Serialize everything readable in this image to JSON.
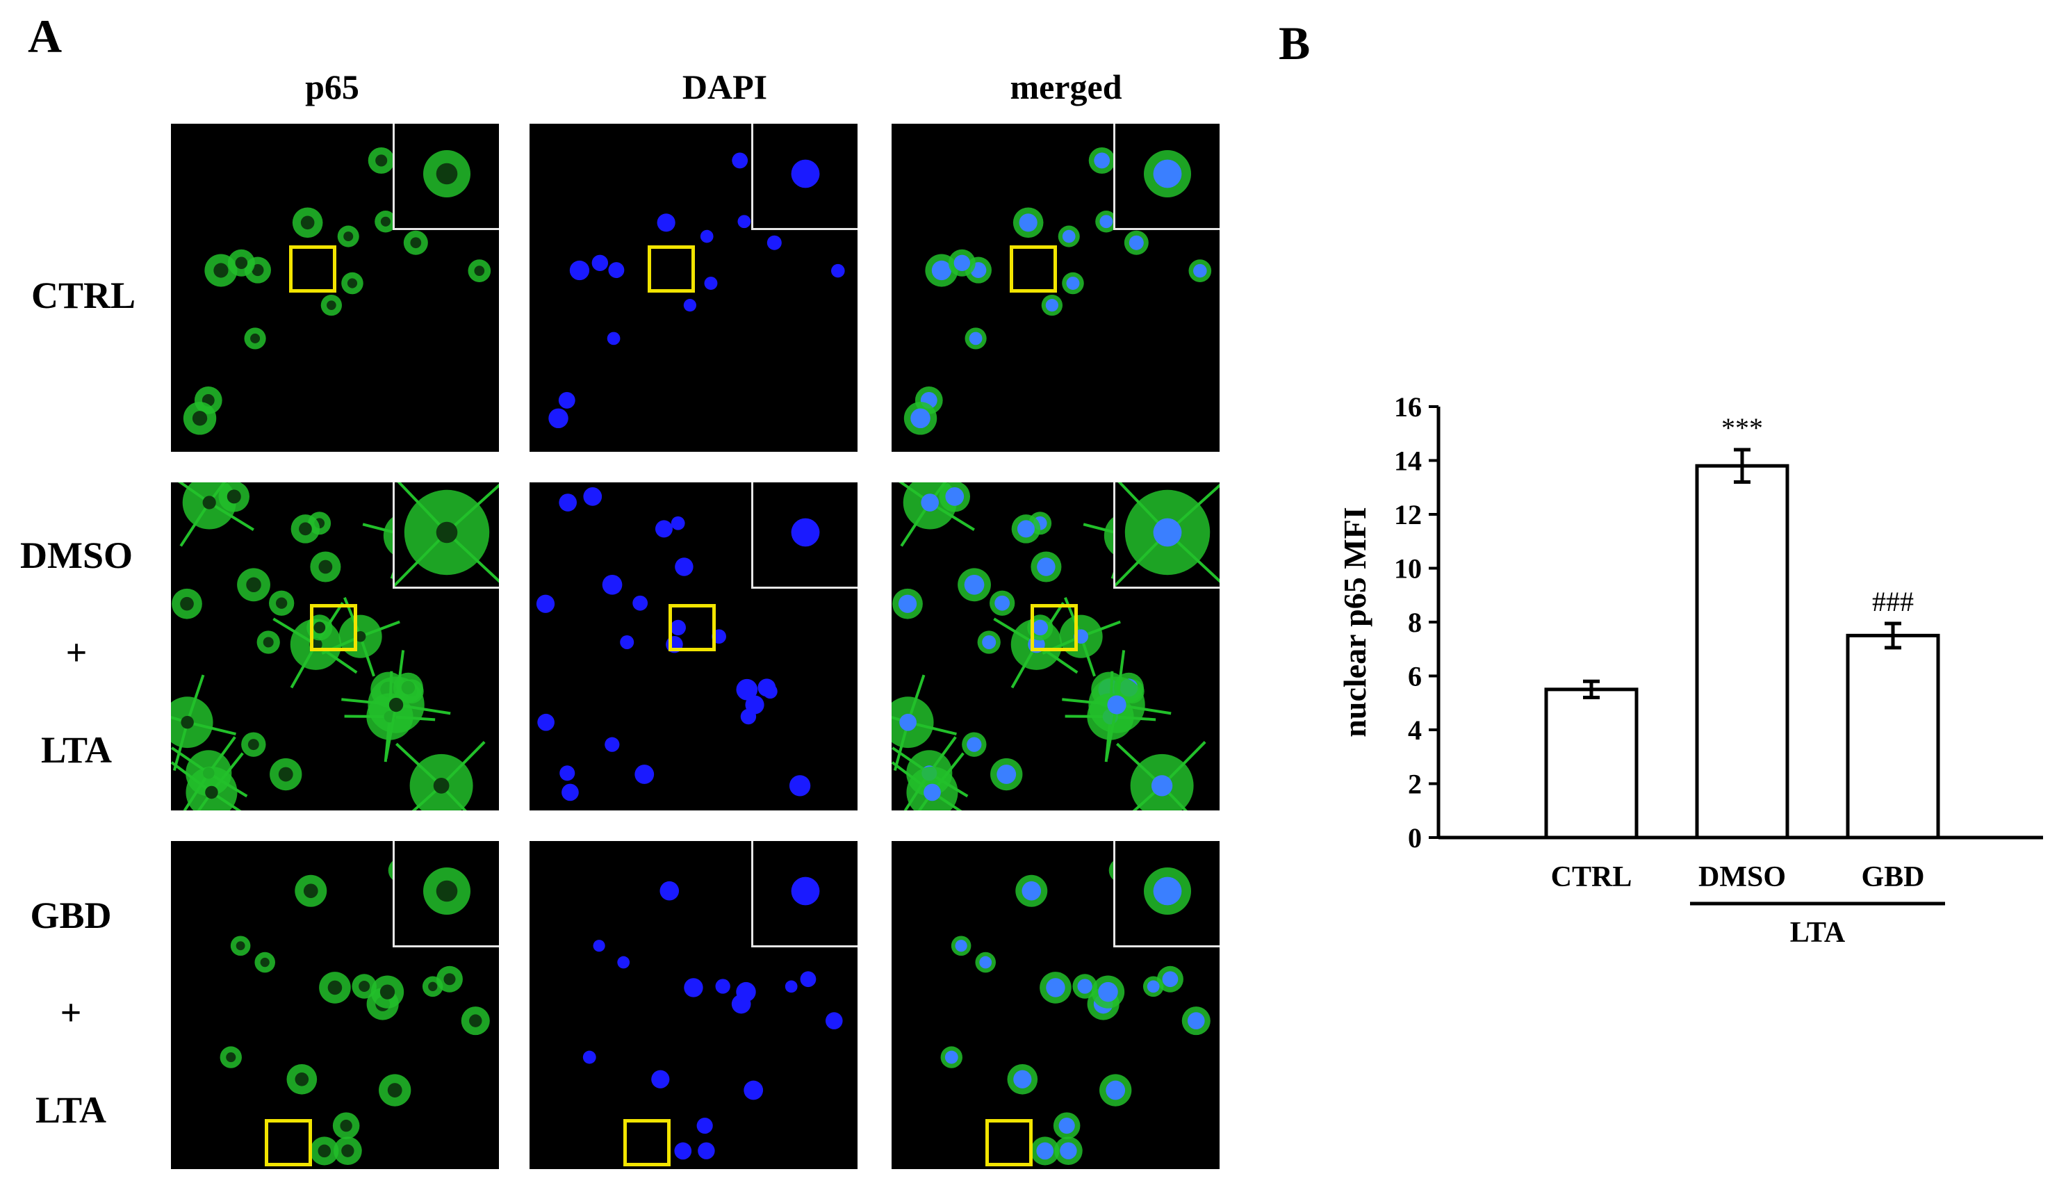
{
  "panel_a": {
    "letter": "A",
    "columns": [
      "p65",
      "DAPI",
      "merged"
    ],
    "rows": [
      {
        "lines": [
          "CTRL"
        ]
      },
      {
        "lines": [
          "DMSO",
          "+",
          "LTA"
        ]
      },
      {
        "lines": [
          "GBD",
          "+",
          "LTA"
        ]
      }
    ],
    "channel_colors": {
      "p65": "#22c02a",
      "DAPI": "#1a1aff",
      "merged_nucleus": "#3a7fff"
    },
    "roi_color": "#f2e400"
  },
  "panel_b": {
    "letter": "B",
    "chart_data": {
      "type": "bar",
      "categories": [
        "CTRL",
        "DMSO",
        "GBD"
      ],
      "values": [
        5.5,
        13.8,
        7.5
      ],
      "errors": [
        0.3,
        0.6,
        0.45
      ],
      "annotations": [
        "",
        "***",
        "###"
      ],
      "group_label": "LTA",
      "group_members": [
        "DMSO",
        "GBD"
      ],
      "title": "",
      "xlabel": "",
      "ylabel": "nuclear p65 MFI",
      "ylim": [
        0,
        16
      ],
      "yticks": [
        0,
        2,
        4,
        6,
        8,
        10,
        12,
        14,
        16
      ],
      "grid": false,
      "bar_fill": "#ffffff",
      "bar_stroke": "#000000"
    }
  }
}
